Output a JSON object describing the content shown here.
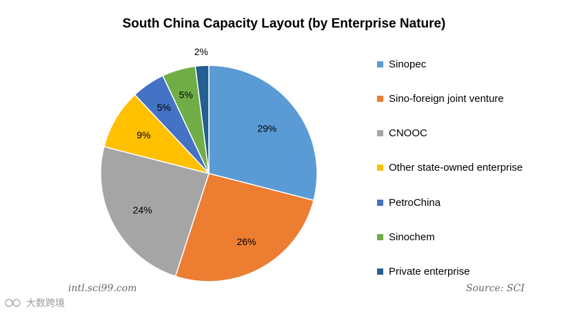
{
  "chart_data": {
    "type": "pie",
    "title": "South China Capacity Layout (by Enterprise Nature)",
    "slices": [
      {
        "name": "Sinopec",
        "value": 29,
        "label": "29%",
        "color": "#5B9BD5"
      },
      {
        "name": "Sino-foreign joint venture",
        "value": 26,
        "label": "26%",
        "color": "#ED7D31"
      },
      {
        "name": "CNOOC",
        "value": 24,
        "label": "24%",
        "color": "#A5A5A5"
      },
      {
        "name": "Other state-owned enterprise",
        "value": 9,
        "label": "9%",
        "color": "#FFC000"
      },
      {
        "name": "PetroChina",
        "value": 5,
        "label": "5%",
        "color": "#4472C4"
      },
      {
        "name": "Sinochem",
        "value": 5,
        "label": "5%",
        "color": "#70AD47"
      },
      {
        "name": "Private enterprise",
        "value": 2,
        "label": "2%",
        "color": "#255E91"
      }
    ],
    "legend_position": "right"
  },
  "watermark_left": "intl.sci99.com",
  "source": "Source: SCI",
  "brand": "大数跨境"
}
